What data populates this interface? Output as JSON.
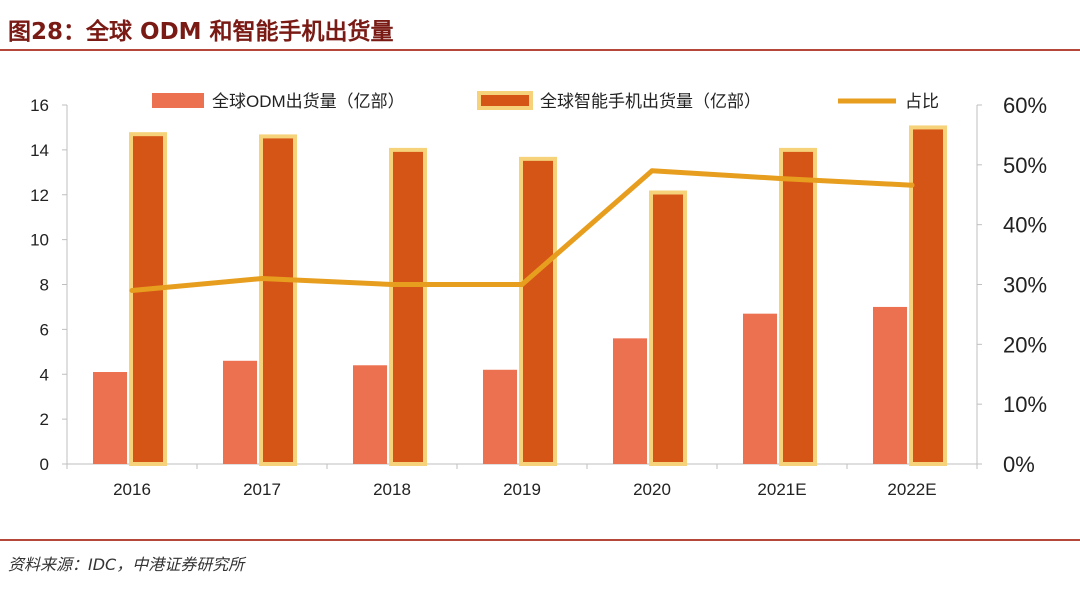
{
  "figure": {
    "title": "图28：全球 ODM 和智能手机出货量",
    "source": "资料来源：IDC，中港证券研究所"
  },
  "colors": {
    "odm_bar": "#ec7150",
    "phone_bar": "#d55516",
    "phone_bar_border": "#f6d37a",
    "share_line": "#e79e1e",
    "title": "#7a1a14",
    "rule": "#b5473a",
    "axis": "#bfbfbf"
  },
  "chart_data": {
    "type": "bar",
    "categories": [
      "2016",
      "2017",
      "2018",
      "2019",
      "2020",
      "2021E",
      "2022E"
    ],
    "series": [
      {
        "name": "全球ODM出货量（亿部）",
        "type": "bar",
        "axis": "left",
        "values": [
          4.1,
          4.6,
          4.4,
          4.2,
          5.6,
          6.7,
          7.0
        ]
      },
      {
        "name": "全球智能手机出货量（亿部）",
        "type": "bar",
        "axis": "left",
        "values": [
          14.7,
          14.6,
          14.0,
          13.6,
          12.1,
          14.0,
          15.0
        ]
      },
      {
        "name": "占比",
        "type": "line",
        "axis": "right",
        "values": [
          0.29,
          0.31,
          0.3,
          0.3,
          0.49,
          0.477,
          0.466
        ]
      }
    ],
    "y_left": {
      "range": [
        0,
        16
      ],
      "ticks": [
        "0",
        "2",
        "4",
        "6",
        "8",
        "10",
        "12",
        "14",
        "16"
      ]
    },
    "y_right": {
      "range": [
        0,
        0.6
      ],
      "ticks": [
        "0%",
        "10%",
        "20%",
        "30%",
        "40%",
        "50%",
        "60%"
      ]
    },
    "grid": false,
    "legend_position": "top"
  }
}
